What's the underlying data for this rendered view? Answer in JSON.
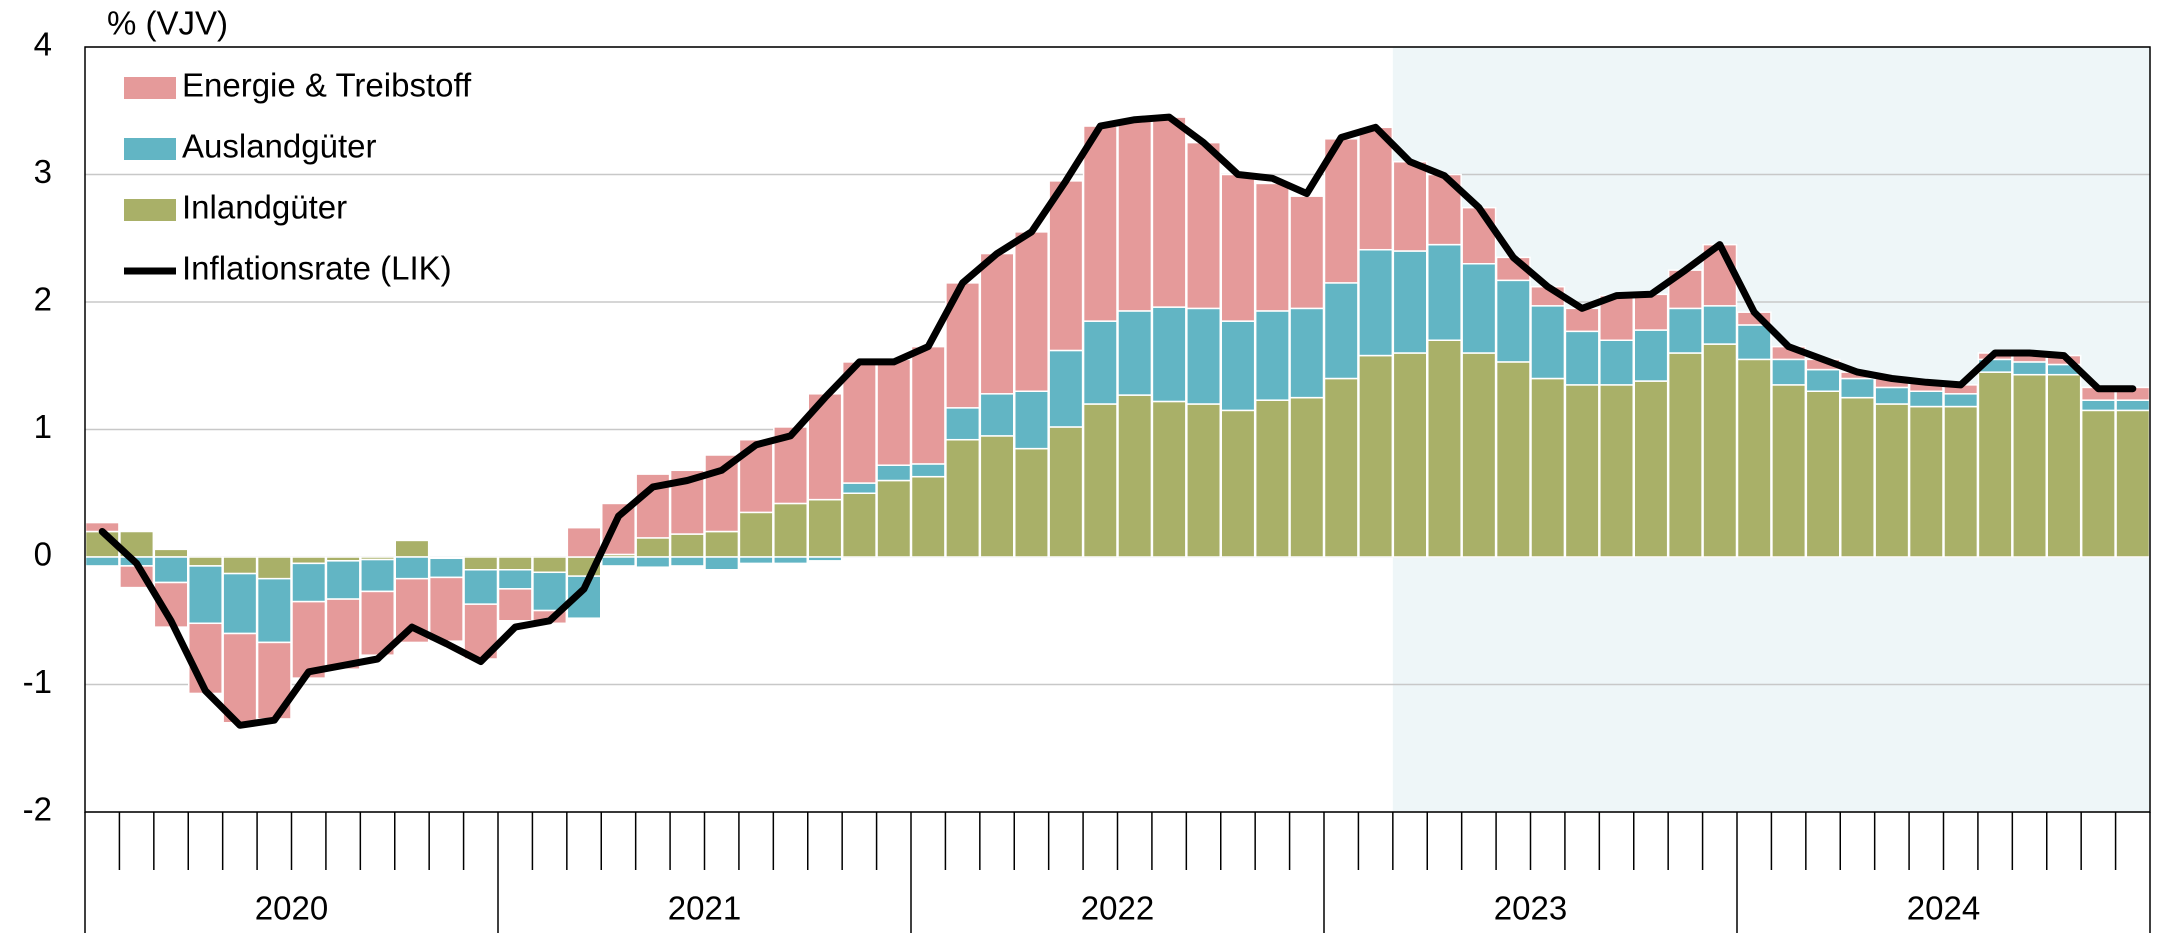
{
  "chart_data": {
    "type": "bar",
    "stacked": true,
    "y_axis_label": "% (VJV)",
    "categories": [
      null,
      null,
      null,
      null,
      null,
      null,
      null,
      null,
      null,
      null,
      null,
      null,
      null,
      null,
      null,
      null,
      null,
      null,
      null,
      null,
      null,
      null,
      null,
      null,
      null,
      null,
      null,
      null,
      null,
      null,
      null,
      null,
      null,
      null,
      null,
      null,
      null,
      null,
      null,
      null,
      null,
      null,
      null,
      null,
      null,
      null,
      null,
      null,
      null,
      null,
      null,
      null,
      null,
      null,
      null,
      null,
      null,
      null,
      null,
      null
    ],
    "groups": [
      "2020",
      "2021",
      "2022",
      "2023",
      "2024"
    ],
    "shaded_from": 38,
    "shade_color": "#eef6f8",
    "ylim": [
      -2,
      4
    ],
    "yticks": [
      -2,
      -1,
      0,
      1,
      2,
      3,
      4
    ],
    "grid": true,
    "legend": "top-left",
    "series": [
      {
        "name": "Inlandgüter",
        "type": "bar",
        "color": "#a9b068",
        "values": [
          0.2,
          0.2,
          0.06,
          -0.07,
          -0.13,
          -0.17,
          -0.05,
          -0.03,
          -0.02,
          0.13,
          -0.01,
          -0.1,
          -0.1,
          -0.12,
          -0.15,
          0.02,
          0.15,
          0.18,
          0.2,
          0.35,
          0.42,
          0.45,
          0.5,
          0.6,
          0.63,
          0.92,
          0.95,
          0.85,
          1.02,
          1.2,
          1.27,
          1.22,
          1.2,
          1.15,
          1.23,
          1.25,
          1.4,
          1.58,
          1.6,
          1.7,
          1.6,
          1.53,
          1.4,
          1.35,
          1.35,
          1.38,
          1.6,
          1.67,
          1.55,
          1.35,
          1.3,
          1.25,
          1.2,
          1.18,
          1.18,
          1.45,
          1.43,
          1.43,
          1.15,
          1.15
        ]
      },
      {
        "name": "Auslandgüter",
        "type": "bar",
        "color": "#62b5c4",
        "values": [
          -0.07,
          -0.07,
          -0.2,
          -0.45,
          -0.47,
          -0.5,
          -0.3,
          -0.3,
          -0.25,
          -0.17,
          -0.15,
          -0.27,
          -0.15,
          -0.3,
          -0.33,
          -0.07,
          -0.08,
          -0.07,
          -0.1,
          -0.05,
          -0.05,
          -0.03,
          0.08,
          0.12,
          0.1,
          0.25,
          0.33,
          0.45,
          0.6,
          0.65,
          0.66,
          0.74,
          0.75,
          0.7,
          0.7,
          0.7,
          0.75,
          0.83,
          0.8,
          0.75,
          0.7,
          0.64,
          0.57,
          0.42,
          0.35,
          0.4,
          0.35,
          0.3,
          0.27,
          0.2,
          0.17,
          0.15,
          0.13,
          0.12,
          0.1,
          0.1,
          0.1,
          0.08,
          0.08,
          0.08
        ]
      },
      {
        "name": "Energie & Treibstoff",
        "type": "bar",
        "color": "#e59a9a",
        "values": [
          0.07,
          -0.17,
          -0.35,
          -0.55,
          -0.7,
          -0.6,
          -0.6,
          -0.55,
          -0.5,
          -0.5,
          -0.5,
          -0.43,
          -0.25,
          -0.1,
          0.23,
          0.4,
          0.5,
          0.5,
          0.6,
          0.57,
          0.6,
          0.83,
          0.95,
          0.83,
          0.92,
          0.98,
          1.1,
          1.25,
          1.33,
          1.53,
          1.5,
          1.49,
          1.3,
          1.15,
          1.0,
          0.88,
          1.13,
          0.96,
          0.7,
          0.55,
          0.44,
          0.18,
          0.15,
          0.18,
          0.35,
          0.28,
          0.3,
          0.48,
          0.1,
          0.1,
          0.08,
          0.05,
          0.07,
          0.07,
          0.07,
          0.05,
          0.05,
          0.07,
          0.1,
          0.1
        ]
      },
      {
        "name": "Inflationsrate (LIK)",
        "type": "line",
        "color": "#000000",
        "values": [
          0.2,
          -0.05,
          -0.5,
          -1.05,
          -1.32,
          -1.28,
          -0.9,
          -0.85,
          -0.8,
          -0.55,
          -0.68,
          -0.82,
          -0.55,
          -0.5,
          -0.25,
          0.32,
          0.55,
          0.6,
          0.68,
          0.88,
          0.95,
          1.25,
          1.53,
          1.53,
          1.65,
          2.15,
          2.38,
          2.55,
          2.95,
          3.38,
          3.43,
          3.45,
          3.25,
          3.0,
          2.97,
          2.85,
          3.29,
          3.37,
          3.1,
          2.99,
          2.74,
          2.35,
          2.12,
          1.95,
          2.05,
          2.06,
          2.25,
          2.45,
          1.92,
          1.65,
          1.55,
          1.45,
          1.4,
          1.37,
          1.35,
          1.6,
          1.6,
          1.58,
          1.32,
          1.32
        ]
      }
    ]
  }
}
